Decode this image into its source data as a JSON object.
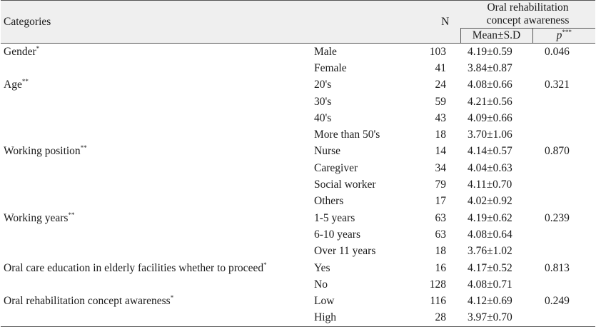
{
  "header": {
    "categories": "Categories",
    "n": "N",
    "awareness_line1": "Oral rehabilitation",
    "awareness_line2": "concept awareness",
    "mean_sd": "Mean±S.D",
    "p": "p",
    "p_sup": "***"
  },
  "groups": [
    {
      "name": "Gender",
      "sup": "*",
      "p": "0.046",
      "rows": [
        {
          "label": "Male",
          "n": "103",
          "mean": "4.19±0.59"
        },
        {
          "label": "Female",
          "n": "41",
          "mean": "3.84±0.87"
        }
      ]
    },
    {
      "name": "Age",
      "sup": "**",
      "p": "0.321",
      "rows": [
        {
          "label": "20's",
          "n": "24",
          "mean": "4.08±0.66"
        },
        {
          "label": "30's",
          "n": "59",
          "mean": "4.21±0.56"
        },
        {
          "label": "40's",
          "n": "43",
          "mean": "4.09±0.66"
        },
        {
          "label": "More than 50's",
          "n": "18",
          "mean": "3.70±1.06"
        }
      ]
    },
    {
      "name": "Working position",
      "sup": "**",
      "p": "0.870",
      "rows": [
        {
          "label": "Nurse",
          "n": "14",
          "mean": "4.14±0.57"
        },
        {
          "label": "Caregiver",
          "n": "34",
          "mean": "4.04±0.63"
        },
        {
          "label": "Social worker",
          "n": "79",
          "mean": "4.11±0.70"
        },
        {
          "label": "Others",
          "n": "17",
          "mean": "4.02±0.92"
        }
      ]
    },
    {
      "name": "Working years",
      "sup": "**",
      "p": "0.239",
      "rows": [
        {
          "label": "1-5 years",
          "n": "63",
          "mean": "4.19±0.62"
        },
        {
          "label": "6-10 years",
          "n": "63",
          "mean": "4.08±0.64"
        },
        {
          "label": "Over 11 years",
          "n": "18",
          "mean": "3.76±1.02"
        }
      ]
    },
    {
      "name": "Oral care education in elderly facilities whether to proceed",
      "sup": "*",
      "p": "0.813",
      "rows": [
        {
          "label": "Yes",
          "n": "16",
          "mean": "4.17±0.52"
        },
        {
          "label": "No",
          "n": "128",
          "mean": "4.08±0.71"
        }
      ]
    },
    {
      "name": "Oral rehabilitation concept awareness",
      "sup": "*",
      "p": "0.249",
      "rows": [
        {
          "label": "Low",
          "n": "116",
          "mean": "4.12±0.69"
        },
        {
          "label": "High",
          "n": "28",
          "mean": "3.97±0.70"
        }
      ]
    }
  ]
}
